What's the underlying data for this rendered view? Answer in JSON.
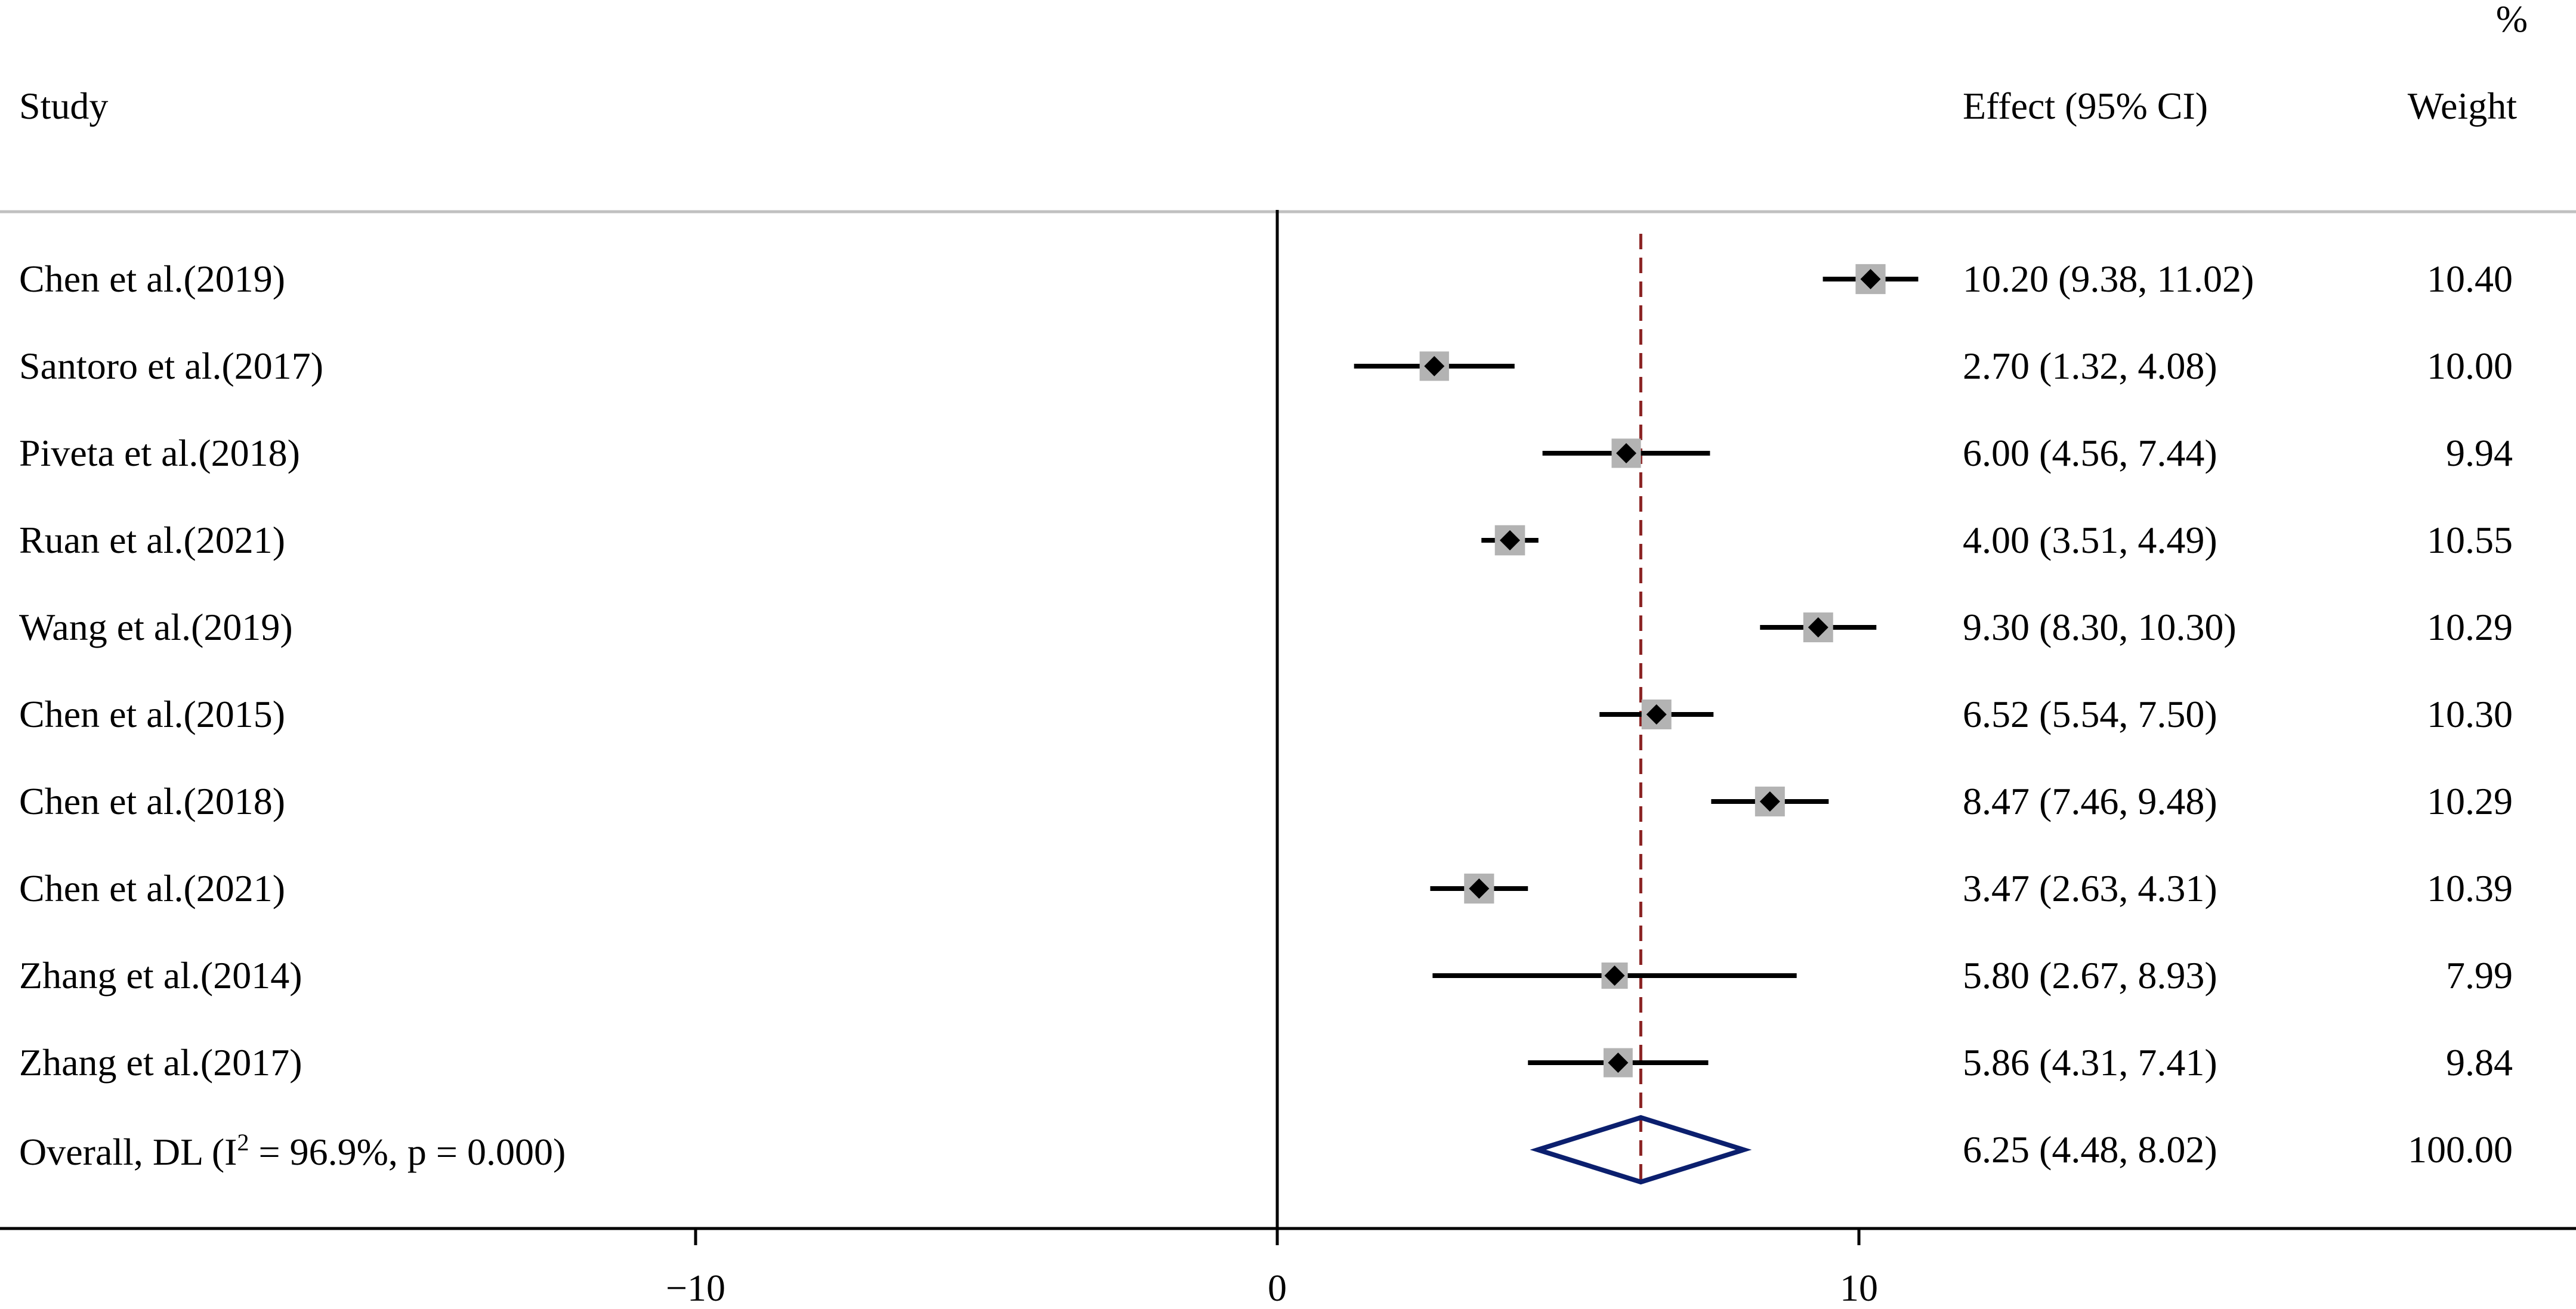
{
  "chart_data": {
    "type": "forest",
    "headers": {
      "study": "Study",
      "effect": "Effect (95% CI)",
      "weight_top": "%",
      "weight": "Weight"
    },
    "studies": [
      {
        "label": "Chen et al.(2019)",
        "effect": 10.2,
        "lower": 9.38,
        "upper": 11.02,
        "effect_text": "10.20 (9.38, 11.02)",
        "weight": 10.4,
        "weight_text": "10.40"
      },
      {
        "label": "Santoro et al.(2017)",
        "effect": 2.7,
        "lower": 1.32,
        "upper": 4.08,
        "effect_text": "2.70 (1.32, 4.08)",
        "weight": 10.0,
        "weight_text": "10.00"
      },
      {
        "label": "Piveta et al.(2018)",
        "effect": 6.0,
        "lower": 4.56,
        "upper": 7.44,
        "effect_text": "6.00 (4.56, 7.44)",
        "weight": 9.94,
        "weight_text": "9.94"
      },
      {
        "label": "Ruan et al.(2021)",
        "effect": 4.0,
        "lower": 3.51,
        "upper": 4.49,
        "effect_text": "4.00 (3.51, 4.49)",
        "weight": 10.55,
        "weight_text": "10.55"
      },
      {
        "label": "Wang et al.(2019)",
        "effect": 9.3,
        "lower": 8.3,
        "upper": 10.3,
        "effect_text": "9.30 (8.30, 10.30)",
        "weight": 10.29,
        "weight_text": "10.29"
      },
      {
        "label": "Chen et al.(2015)",
        "effect": 6.52,
        "lower": 5.54,
        "upper": 7.5,
        "effect_text": "6.52 (5.54, 7.50)",
        "weight": 10.3,
        "weight_text": "10.30"
      },
      {
        "label": "Chen et al.(2018)",
        "effect": 8.47,
        "lower": 7.46,
        "upper": 9.48,
        "effect_text": "8.47 (7.46, 9.48)",
        "weight": 10.29,
        "weight_text": "10.29"
      },
      {
        "label": "Chen et al.(2021)",
        "effect": 3.47,
        "lower": 2.63,
        "upper": 4.31,
        "effect_text": "3.47 (2.63, 4.31)",
        "weight": 10.39,
        "weight_text": "10.39"
      },
      {
        "label": "Zhang et al.(2014)",
        "effect": 5.8,
        "lower": 2.67,
        "upper": 8.93,
        "effect_text": "5.80 (2.67, 8.93)",
        "weight": 7.99,
        "weight_text": "7.99"
      },
      {
        "label": "Zhang et al.(2017)",
        "effect": 5.86,
        "lower": 4.31,
        "upper": 7.41,
        "effect_text": "5.86 (4.31, 7.41)",
        "weight": 9.84,
        "weight_text": "9.84"
      }
    ],
    "overall": {
      "label_prefix": "Overall, DL (I",
      "label_sup": "2",
      "label_suffix": " = 96.9%, p = 0.000)",
      "effect": 6.25,
      "lower": 4.48,
      "upper": 8.02,
      "effect_text": "6.25 (4.48, 8.02)",
      "weight_text": "100.00"
    },
    "x_axis": {
      "ticks": [
        -10,
        0,
        10
      ],
      "tick_labels": [
        "−10",
        "0",
        "10"
      ],
      "range": [
        -21.8,
        22.3
      ]
    },
    "colors": {
      "ci_line": "#000000",
      "weight_box": "#b3b3b3",
      "point": "#000000",
      "reference_line": "#8b2323",
      "diamond": "#0b1f6e",
      "divider": "#c0c0c0"
    }
  }
}
